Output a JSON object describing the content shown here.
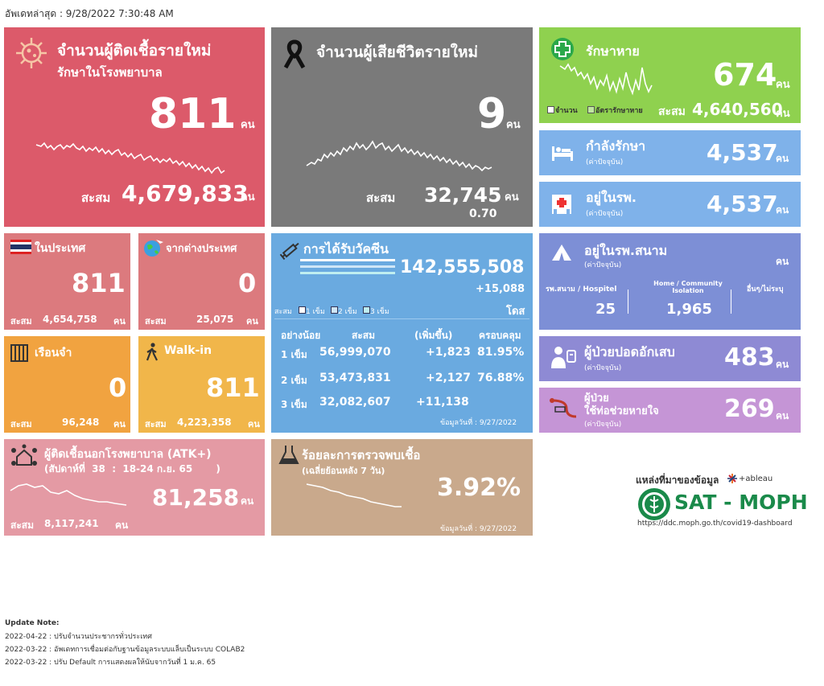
{
  "header": {
    "updated": "อัพเดทล่าสุด : 9/28/2022 7:30:48 AM"
  },
  "new_cases": {
    "title1": "จำนวนผู้ติดเชื้อรายใหม่",
    "title2": "รักษาในโรงพยาบาล",
    "value": "811",
    "unit": "คน",
    "cum_label": "สะสม",
    "cum_value": "4,679,833",
    "cum_unit": "คน",
    "color": "#dc5a6a"
  },
  "deaths": {
    "title": "จำนวนผู้เสียชีวิตรายใหม่",
    "value": "9",
    "unit": "คน",
    "cum_label": "สะสม",
    "cum_value": "32,745",
    "cum_unit": "คน",
    "rate": "0.70",
    "color": "#7a7a7a"
  },
  "recovered": {
    "title": "รักษาหาย",
    "value": "674",
    "unit": "คน",
    "legend1": "จำนวน",
    "legend2": "อัตรารักษาหาย",
    "cum_label": "สะสม",
    "cum_value": "4,640,560",
    "cum_unit": "คน",
    "color": "#8fd14f"
  },
  "treating": {
    "title": "กำลังรักษา",
    "sub": "(ค่าปัจจุบัน)",
    "value": "4,537",
    "unit": "คน"
  },
  "in_hospital": {
    "title": "อยู่ในรพ.",
    "sub": "(ค่าปัจจุบัน)",
    "value": "4,537",
    "unit": "คน"
  },
  "domestic": {
    "title": "ในประเทศ",
    "value": "811",
    "cum_label": "สะสม",
    "cum_value": "4,654,758",
    "cum_unit": "คน"
  },
  "abroad": {
    "title": "จากต่างประเทศ",
    "value": "0",
    "cum_label": "สะสม",
    "cum_value": "25,075",
    "cum_unit": "คน"
  },
  "prison": {
    "title": "เรือนจำ",
    "value": "0",
    "cum_label": "สะสม",
    "cum_value": "96,248",
    "cum_unit": "คน"
  },
  "walkin": {
    "title": "Walk-in",
    "value": "811",
    "cum_label": "สะสม",
    "cum_value": "4,223,358",
    "cum_unit": "คน"
  },
  "vaccine": {
    "title": "การได้รับวัคซีน",
    "total": "142,555,508",
    "increase": "+15,088",
    "unit": "โดส",
    "legend_label": "สะสม",
    "legend": [
      "1 เข็ม",
      "2 เข็ม",
      "3 เข็ม"
    ],
    "headers": [
      "อย่างน้อย",
      "สะสม",
      "(เพิ่มขึ้น)",
      "ครอบคลุม"
    ],
    "rows": [
      {
        "dose": "1 เข็ม",
        "cum": "56,999,070",
        "inc": "+1,823",
        "cov": "81.95%"
      },
      {
        "dose": "2 เข็ม",
        "cum": "53,473,831",
        "inc": "+2,127",
        "cov": "76.88%"
      },
      {
        "dose": "3 เข็ม",
        "cum": "32,082,607",
        "inc": "+11,138",
        "cov": ""
      }
    ],
    "date": "ข้อมูลวันที่ : 9/27/2022"
  },
  "field_hospital": {
    "title": "อยู่ในรพ.สนาม",
    "sub": "(ค่าปัจจุบัน)",
    "unit": "คน",
    "col1_label": "รพ.สนาม / Hospitel",
    "col1_value": "25",
    "col2_label1": "Home / Community",
    "col2_label2": "Isolation",
    "col2_value": "1,965",
    "col3_label": "อื่นๆ/ไม่ระบุ"
  },
  "pneumonia": {
    "title": "ผู้ป่วยปอดอักเสบ",
    "sub": "(ค่าปัจจุบัน)",
    "value": "483",
    "unit": "คน"
  },
  "ventilator": {
    "title1": "ผู้ป่วย",
    "title2": "ใช้ท่อช่วยหายใจ",
    "sub": "(ค่าปัจจุบัน)",
    "value": "269",
    "unit": "คน"
  },
  "atk": {
    "title": "ผู้ติดเชื้อนอกโรงพยาบาล (ATK+)",
    "week": "(สัปดาห์ที่  38  :  18-24 ก.ย. 65       )",
    "value": "81,258",
    "unit": "คน",
    "cum_label": "สะสม",
    "cum_value": "8,117,241",
    "cum_unit": "คน"
  },
  "positivity": {
    "title": "ร้อยละการตรวจพบเชื้อ",
    "sub": "(เฉลี่ยย้อนหลัง 7 วัน)",
    "value": "3.92%",
    "date": "ข้อมูลวันที่ : 9/27/2022"
  },
  "source": {
    "label": "แหล่งที่มาของข้อมูล",
    "tableau": "+ableau",
    "brand": "SAT - MOPH",
    "url": "https://ddc.moph.go.th/covid19-dashboard"
  },
  "notes": {
    "title": "Update Note:",
    "items": [
      "2022-04-22 : ปรับจำนวนประชากรทั่วประเทศ",
      "2022-03-22 : อัพเดทการเชื่อมต่อกับฐานข้อมูลระบบแล็บเป็นระบบ COLAB2",
      "2022-03-22 : ปรับ Default การแสดงผลให้นับจากวันที่ 1 ม.ค. 65"
    ]
  }
}
